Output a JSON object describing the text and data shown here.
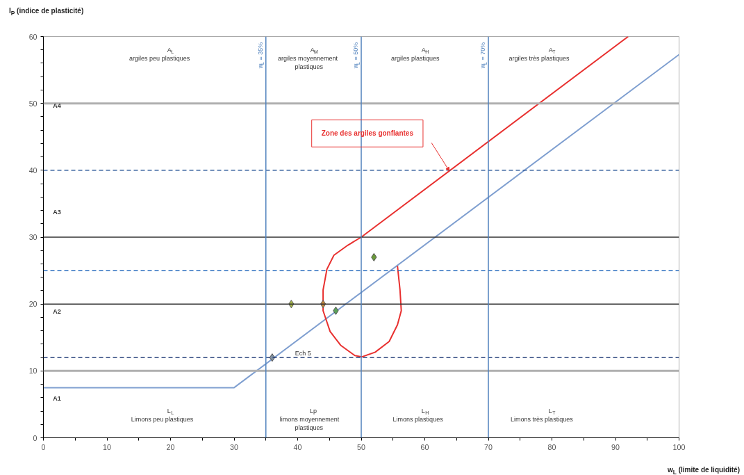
{
  "chart_data": {
    "type": "line",
    "ylabel": "I$_{P}$ (indice de plasticité)",
    "xlabel": "w$_{L}$ (limite de liquidité)",
    "xlim": [
      0,
      100
    ],
    "ylim": [
      0,
      60
    ],
    "xticks": [
      0,
      {
        "value": 5,
        "label": null
      },
      10,
      {
        "value": 15,
        "label": null
      },
      20,
      {
        "value": 25,
        "label": null
      },
      30,
      {
        "value": 35,
        "label": null
      },
      40,
      {
        "value": 45,
        "label": null
      },
      50,
      {
        "value": 55,
        "label": null
      },
      60,
      {
        "value": 65,
        "label": null
      },
      70,
      {
        "value": 75,
        "label": null
      },
      80,
      {
        "value": 85,
        "label": null
      },
      90,
      {
        "value": 95,
        "label": null
      },
      100
    ],
    "yticks": [
      0,
      {
        "value": 2,
        "label": null
      },
      {
        "value": 4,
        "label": null
      },
      {
        "value": 6,
        "label": null
      },
      {
        "value": 8,
        "label": null
      },
      10,
      {
        "value": 12,
        "label": null
      },
      {
        "value": 14,
        "label": null
      },
      {
        "value": 16,
        "label": null
      },
      {
        "value": 18,
        "label": null
      },
      20,
      {
        "value": 22,
        "label": null
      },
      {
        "value": 24,
        "label": null
      },
      {
        "value": 26,
        "label": null
      },
      {
        "value": 28,
        "label": null
      },
      30,
      {
        "value": 32,
        "label": null
      },
      {
        "value": 34,
        "label": null
      },
      {
        "value": 36,
        "label": null
      },
      {
        "value": 38,
        "label": null
      },
      40,
      {
        "value": 42,
        "label": null
      },
      {
        "value": 44,
        "label": null
      },
      {
        "value": 46,
        "label": null
      },
      {
        "value": 48,
        "label": null
      },
      50,
      {
        "value": 52,
        "label": null
      },
      {
        "value": 54,
        "label": null
      },
      {
        "value": 56,
        "label": null
      },
      {
        "value": 58,
        "label": null
      },
      60
    ],
    "grid": false,
    "series": [
      {
        "color": "#7f9fd0",
        "x": [
          0,
          30,
          100
        ],
        "values": [
          7.5,
          7.5,
          57.3
        ]
      },
      {
        "name": "Zone des argiles gonflantes",
        "color": "#e8302f",
        "x": [
          55.7,
          56.1,
          56.3,
          55.7,
          54.4,
          52.2,
          50.1,
          49.0,
          46.8,
          45.1,
          44.0,
          44.0,
          44.6,
          45.7,
          47.9,
          50,
          92
        ],
        "values": [
          25.7,
          22.1,
          19.0,
          16.9,
          14.4,
          12.8,
          12.1,
          12.3,
          13.8,
          15.9,
          19.0,
          22.1,
          25.2,
          27.3,
          28.8,
          30,
          60
        ]
      },
      {
        "type": "scatter",
        "marker": "diamond",
        "x": [
          39,
          44,
          46,
          52,
          36
        ],
        "values": [
          20,
          20,
          19,
          27,
          12
        ],
        "colors": [
          "#a8b84a",
          "#c9893a",
          "#5aa05a",
          "#6b9a3a",
          "#7f8fa0"
        ]
      }
    ],
    "ref_lines": [
      {
        "axis": "y",
        "value": 10,
        "color": "#b0b0b0",
        "line_style": "solid"
      },
      {
        "axis": "y",
        "value": 50,
        "color": "#b0b0b0",
        "line_style": "solid"
      },
      {
        "axis": "y",
        "value": 20,
        "color": "#333333",
        "line_style": "solid"
      },
      {
        "axis": "y",
        "value": 30,
        "color": "#333333",
        "line_style": "solid"
      },
      {
        "axis": "y",
        "value": 12,
        "color": "#243f7a",
        "line_style": "dashed"
      },
      {
        "axis": "y",
        "value": 25,
        "color": "#2e6fc0",
        "line_style": "dashed"
      },
      {
        "axis": "y",
        "value": 40,
        "color": "#2e5a9a",
        "line_style": "dashed"
      },
      {
        "axis": "x",
        "value": 35,
        "color": "#4f81bd",
        "line_style": "solid",
        "label": "w$_{L}$ = 35%"
      },
      {
        "axis": "x",
        "value": 50,
        "color": "#4f81bd",
        "line_style": "solid",
        "label": "w$_{L}$ = 50%"
      },
      {
        "axis": "x",
        "value": 70,
        "color": "#4f81bd",
        "line_style": "solid",
        "label": "w$_{L}$ = 70%"
      }
    ],
    "annotations": [
      "A$_{L}$\nargiles peu plastiques",
      "A$_{M}$\nargiles moyennement\nplastiques",
      "A$_{H}$\nargiles plastiques",
      "A$_{T}$\nargiles très plastiques",
      "L$_{L}$\nLimons peu plastiques",
      "Lp\nlimons moyennement\nplastiques",
      "L$_{H}$\nLimons plastiques",
      "L$_{T}$\nLimons très plastiques",
      "A1",
      "A2",
      "A3",
      "A4",
      {
        "text": "Ech 5",
        "x": 38.5,
        "y": 12
      }
    ]
  }
}
